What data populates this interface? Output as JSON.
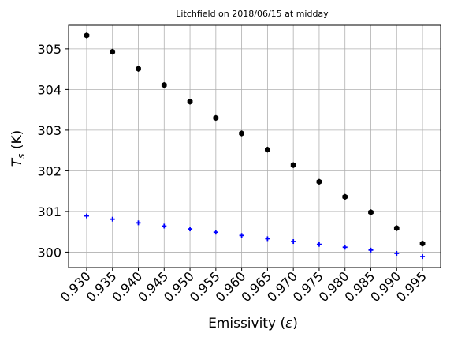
{
  "chart_data": {
    "type": "scatter",
    "title": "Litchfield on 2018/06/15 at midday",
    "xlabel": "Emissivity (",
    "xlabel_symbol": "ε",
    "xlabel_close": ")",
    "ylabel_main": "T",
    "ylabel_sub": "s",
    "ylabel_unit": " (K)",
    "x": [
      0.93,
      0.935,
      0.94,
      0.945,
      0.95,
      0.955,
      0.96,
      0.965,
      0.97,
      0.975,
      0.98,
      0.985,
      0.99,
      0.995
    ],
    "x_tick_labels": [
      "0.930",
      "0.935",
      "0.940",
      "0.945",
      "0.950",
      "0.955",
      "0.960",
      "0.965",
      "0.970",
      "0.975",
      "0.980",
      "0.985",
      "0.990",
      "0.995"
    ],
    "y_ticks": [
      300,
      301,
      302,
      303,
      304,
      305
    ],
    "y_tick_labels": [
      "300",
      "301",
      "302",
      "303",
      "304",
      "305"
    ],
    "xlim": [
      0.9265,
      0.9985
    ],
    "ylim": [
      299.62,
      305.58
    ],
    "grid": true,
    "series": [
      {
        "marker": "hexagon",
        "color": "#000000",
        "values": [
          305.33,
          304.93,
          304.51,
          304.11,
          303.7,
          303.3,
          302.92,
          302.52,
          302.14,
          301.73,
          301.36,
          300.98,
          300.59,
          300.21
        ]
      },
      {
        "marker": "plus",
        "color": "#0000ff",
        "values": [
          300.89,
          300.81,
          300.72,
          300.64,
          300.57,
          300.49,
          300.41,
          300.33,
          300.26,
          300.19,
          300.12,
          300.05,
          299.97,
          299.89
        ]
      }
    ]
  }
}
